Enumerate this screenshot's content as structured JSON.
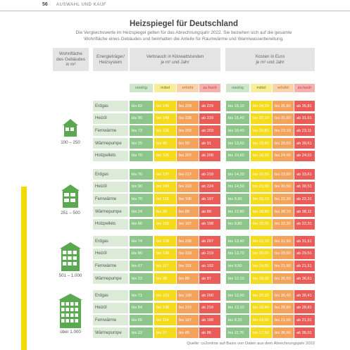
{
  "header": {
    "page": "56",
    "section": "AUSWAHL UND KAUF"
  },
  "title": "Heizspiegel für Deutschland",
  "subtitle": [
    "Die Vergleichswerte im Heizspiegel gelten für das Abrechnungsjahr 2022. Sie beziehen sich auf die gesamte",
    "Wohnfläche eines Gebäudes und beinhalten die Anteile für Raumwärme und Warmwasserbereitung."
  ],
  "columns": {
    "area": [
      "Wohnfläche",
      "des Gebäudes",
      "in m²"
    ],
    "system": [
      "Energieträger/",
      "Heizsystem"
    ],
    "consumption": [
      "Verbrauch in Kilowattstunden",
      "je m² und Jahr"
    ],
    "cost": [
      "Kosten in Euro",
      "je m² und Jahr"
    ]
  },
  "levels": [
    "niedrig",
    "mittel",
    "erhöht",
    "zu hoch"
  ],
  "groups": [
    {
      "area": "100 – 250",
      "rows": [
        {
          "system": "Erdgas",
          "consumption": [
            "bis 82",
            "bis 145",
            "bis 228",
            "ab 229"
          ],
          "cost": [
            "bis 15,10",
            "bis 24,29",
            "bis 35,80",
            "ab 35,81"
          ]
        },
        {
          "system": "Heizöl",
          "consumption": [
            "bis 95",
            "bis 148",
            "bis 228",
            "ab 229"
          ],
          "cost": [
            "bis 15,40",
            "bis 22,10",
            "bis 31,60",
            "ab 31,61"
          ]
        },
        {
          "system": "Fernwärme",
          "consumption": [
            "bis 73",
            "bis 126",
            "bis 202",
            "ab 203"
          ],
          "cost": [
            "bis 10,40",
            "bis 15,80",
            "bis 23,10",
            "ab 23,11"
          ]
        },
        {
          "system": "Wärmepumpe",
          "consumption": [
            "bis 25",
            "bis 40",
            "bis 90",
            "ab 91"
          ],
          "cost": [
            "bis 13,50",
            "bis 19,80",
            "bis 39,60",
            "ab 39,61"
          ]
        },
        {
          "system": "Holzpellets",
          "consumption": [
            "bis 70",
            "bis 125",
            "bis 207",
            "ab 208"
          ],
          "cost": [
            "bis 10,60",
            "bis 16,20",
            "bis 24,00",
            "ab 24,01"
          ]
        }
      ]
    },
    {
      "area": "251 – 500",
      "rows": [
        {
          "system": "Erdgas",
          "consumption": [
            "bis 76",
            "bis 137",
            "bis 217",
            "ab 218"
          ],
          "cost": [
            "bis 14,20",
            "bis 22,50",
            "bis 33,60",
            "ab 33,61"
          ]
        },
        {
          "system": "Heizöl",
          "consumption": [
            "bis 90",
            "bis 143",
            "bis 223",
            "ab 224"
          ],
          "cost": [
            "bis 14,50",
            "bis 21,00",
            "bis 30,50",
            "ab 30,51"
          ]
        },
        {
          "system": "Fernwärme",
          "consumption": [
            "bis 70",
            "bis 121",
            "bis 196",
            "ab 197"
          ],
          "cost": [
            "bis 9,90",
            "bis 15,10",
            "bis 22,30",
            "ab 22,31"
          ]
        },
        {
          "system": "Wärmepumpe",
          "consumption": [
            "bis 24",
            "bis 39",
            "bis 88",
            "ab 89"
          ],
          "cost": [
            "bis 12,80",
            "bis 18,80",
            "bis 38,10",
            "ab 38,11"
          ]
        },
        {
          "system": "Holzpellets",
          "consumption": [
            "bis 66",
            "bis 118",
            "bis 197",
            "ab 198"
          ],
          "cost": [
            "bis 9,80",
            "bis 15,00",
            "bis 22,30",
            "ab 22,31"
          ]
        }
      ]
    },
    {
      "area": "501 – 1.000",
      "rows": [
        {
          "system": "Erdgas",
          "consumption": [
            "bis 74",
            "bis 128",
            "bis 206",
            "ab 207"
          ],
          "cost": [
            "bis 13,40",
            "bis 21,10",
            "bis 31,60",
            "ab 31,61"
          ]
        },
        {
          "system": "Heizöl",
          "consumption": [
            "bis 86",
            "bis 138",
            "bis 218",
            "ab 219"
          ],
          "cost": [
            "bis 13,70",
            "bis 20,00",
            "bis 29,50",
            "ab 29,51"
          ]
        },
        {
          "system": "Fernwärme",
          "consumption": [
            "bis 67",
            "bis 117",
            "bis 191",
            "ab 192"
          ],
          "cost": [
            "bis 9,50",
            "bis 14,50",
            "bis 21,50",
            "ab 21,51"
          ]
        },
        {
          "system": "Wärmepumpe",
          "consumption": [
            "bis 23",
            "bis 38",
            "bis 86",
            "ab 87"
          ],
          "cost": [
            "bis 12,10",
            "bis 18,00",
            "bis 36,60",
            "ab 36,61"
          ]
        }
      ]
    },
    {
      "area": "über 1.000",
      "rows": [
        {
          "system": "Erdgas",
          "consumption": [
            "bis 71",
            "bis 123",
            "bis 199",
            "ab 200"
          ],
          "cost": [
            "bis 12,90",
            "bis 20,20",
            "bis 30,40",
            "ab 30,41"
          ]
        },
        {
          "system": "Heizöl",
          "consumption": [
            "bis 84",
            "bis 135",
            "bis 215",
            "ab 216"
          ],
          "cost": [
            "bis 13,10",
            "bis 19,40",
            "bis 28,80",
            "ab 28,81"
          ]
        },
        {
          "system": "Fernwärme",
          "consumption": [
            "bis 65",
            "bis 114",
            "bis 187",
            "ab 188"
          ],
          "cost": [
            "bis 9,20",
            "bis 14,00",
            "bis 21,00",
            "ab 21,01"
          ]
        },
        {
          "system": "Wärmepumpe",
          "consumption": [
            "bis 22",
            "bis 37",
            "bis 85",
            "ab 86"
          ],
          "cost": [
            "bis 11,70",
            "bis 17,50",
            "bis 36,00",
            "ab 36,01"
          ]
        }
      ]
    }
  ],
  "source": "Quelle: co2online auf Basis von Daten aus dem Abrechnungsjahr 2022"
}
